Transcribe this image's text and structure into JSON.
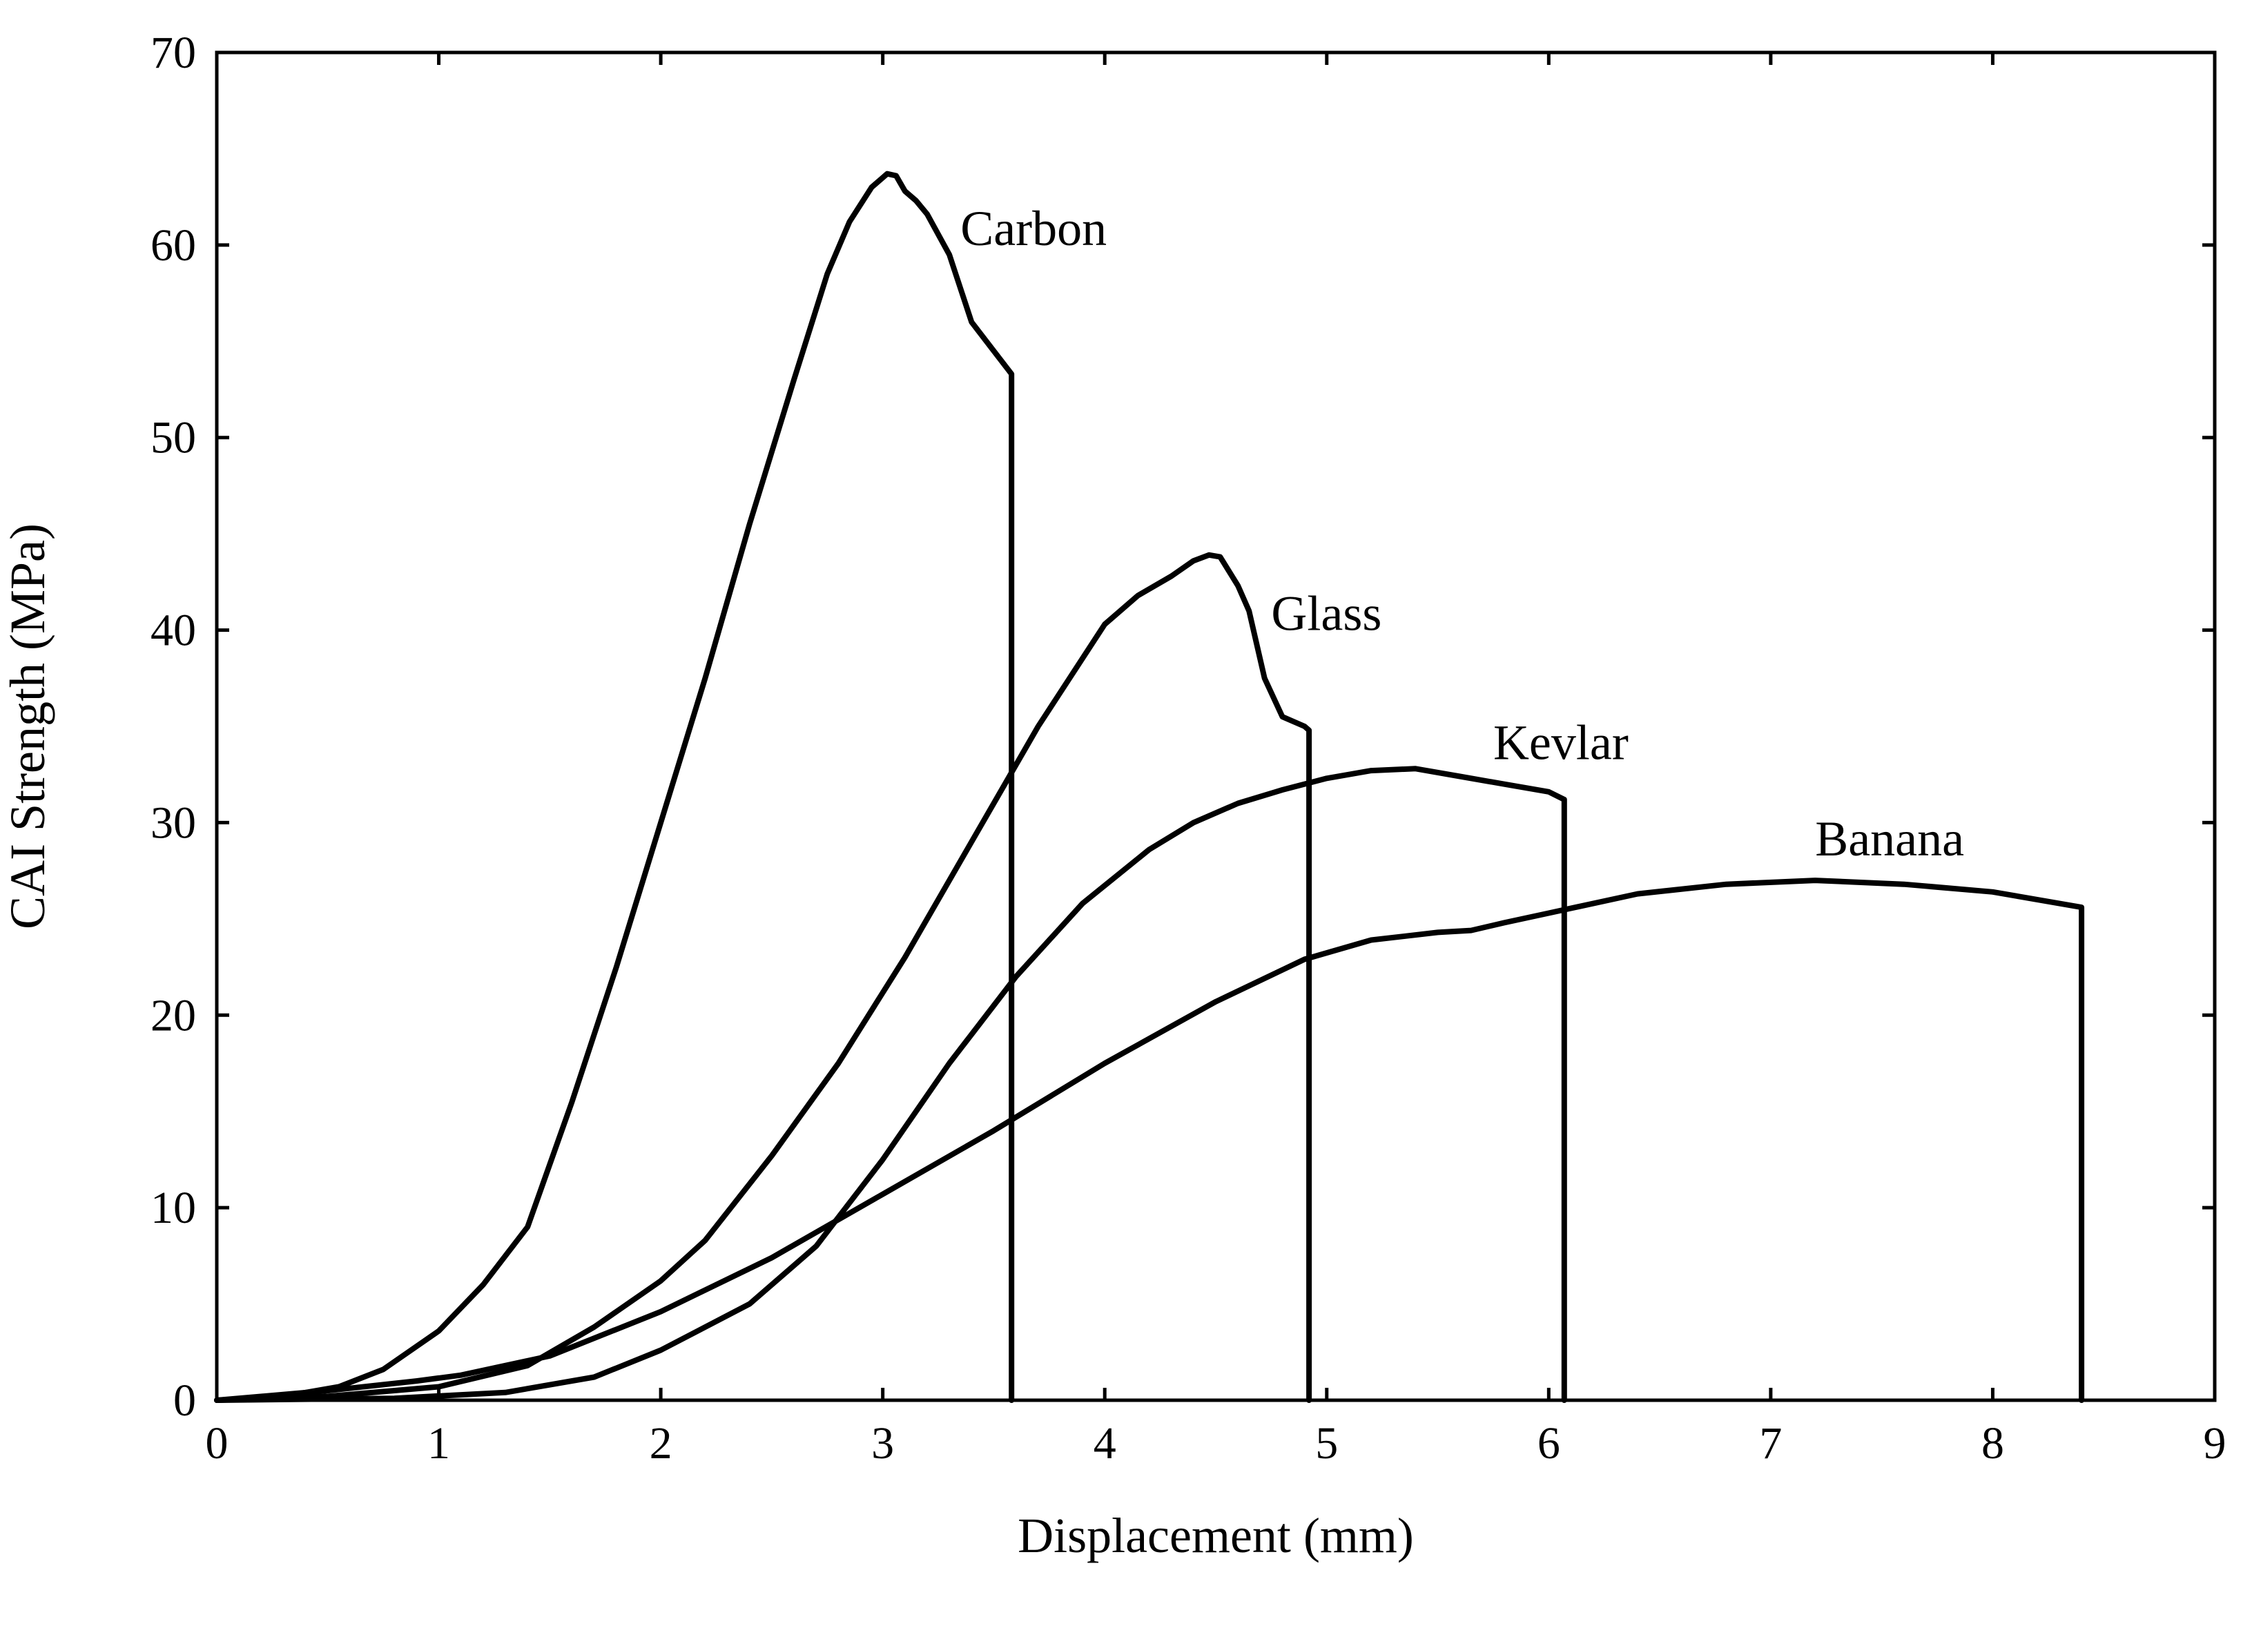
{
  "chart_data": {
    "type": "line",
    "title": "",
    "xlabel": "Displacement (mm)",
    "ylabel": "CAI Strength (MPa)",
    "xlim": [
      0,
      9
    ],
    "ylim": [
      0,
      70
    ],
    "xticks": [
      0,
      1,
      2,
      3,
      4,
      5,
      6,
      7,
      8,
      9
    ],
    "yticks": [
      0,
      10,
      20,
      30,
      40,
      50,
      60,
      70
    ],
    "grid": false,
    "legend": "inline labels",
    "color": "#000000",
    "series": [
      {
        "name": "Carbon",
        "label_at": [
          3.35,
          60
        ],
        "x": [
          0,
          0.3,
          0.55,
          0.75,
          1.0,
          1.2,
          1.4,
          1.6,
          1.8,
          2.0,
          2.2,
          2.4,
          2.6,
          2.75,
          2.85,
          2.95,
          3.02,
          3.06,
          3.1,
          3.15,
          3.2,
          3.3,
          3.4,
          3.5,
          3.58,
          3.58
        ],
        "y": [
          0,
          0.2,
          0.7,
          1.6,
          3.6,
          6.0,
          9.0,
          15.5,
          22.5,
          30.0,
          37.5,
          45.5,
          53.0,
          58.5,
          61.2,
          63.0,
          63.7,
          63.6,
          62.8,
          62.3,
          61.6,
          59.5,
          56.0,
          54.5,
          53.3,
          0
        ]
      },
      {
        "name": "Glass",
        "label_at": [
          4.75,
          40
        ],
        "x": [
          0,
          0.5,
          1.0,
          1.4,
          1.7,
          2.0,
          2.2,
          2.5,
          2.8,
          3.1,
          3.4,
          3.7,
          4.0,
          4.15,
          4.3,
          4.4,
          4.47,
          4.52,
          4.6,
          4.65,
          4.72,
          4.8,
          4.9,
          4.92,
          4.92
        ],
        "y": [
          0,
          0.2,
          0.7,
          1.8,
          3.8,
          6.2,
          8.3,
          12.7,
          17.5,
          23.0,
          29.0,
          35.0,
          40.3,
          41.8,
          42.8,
          43.6,
          43.9,
          43.8,
          42.3,
          41.0,
          37.5,
          35.5,
          35.0,
          34.8,
          0
        ]
      },
      {
        "name": "Kevlar",
        "label_at": [
          5.75,
          33.3
        ],
        "x": [
          0,
          0.8,
          1.3,
          1.7,
          2.0,
          2.4,
          2.7,
          3.0,
          3.3,
          3.6,
          3.9,
          4.2,
          4.4,
          4.6,
          4.8,
          5.0,
          5.2,
          5.4,
          5.6,
          5.8,
          6.0,
          6.07,
          6.07
        ],
        "y": [
          0,
          0.1,
          0.4,
          1.2,
          2.6,
          5.0,
          8.0,
          12.5,
          17.5,
          22.0,
          25.8,
          28.6,
          30.0,
          31.0,
          31.7,
          32.3,
          32.7,
          32.8,
          32.4,
          32.0,
          31.6,
          31.2,
          0
        ]
      },
      {
        "name": "Banana",
        "label_at": [
          7.2,
          28.3
        ],
        "x": [
          0,
          0.5,
          0.9,
          1.1,
          1.5,
          2.0,
          2.5,
          3.0,
          3.5,
          4.0,
          4.5,
          4.9,
          5.2,
          5.5,
          5.65,
          5.8,
          6.0,
          6.4,
          6.8,
          7.2,
          7.6,
          8.0,
          8.4,
          8.4
        ],
        "y": [
          0,
          0.5,
          1.0,
          1.3,
          2.3,
          4.6,
          7.4,
          10.7,
          14.0,
          17.5,
          20.7,
          22.9,
          23.9,
          24.3,
          24.4,
          24.8,
          25.3,
          26.3,
          26.8,
          27.0,
          26.8,
          26.4,
          25.6,
          0
        ]
      }
    ]
  }
}
